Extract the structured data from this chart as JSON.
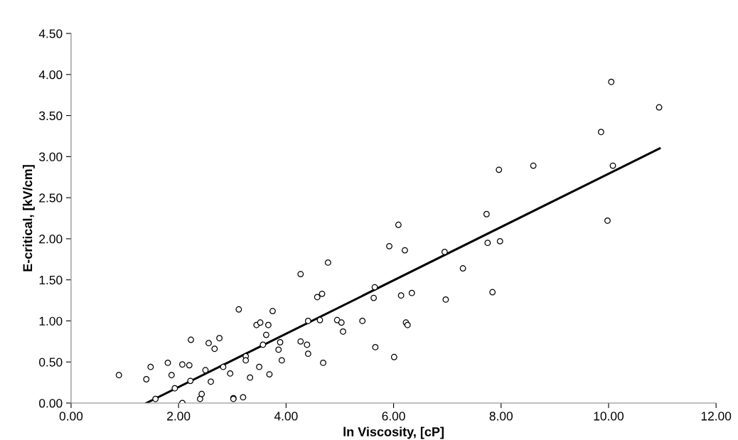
{
  "chart_data": {
    "type": "scatter",
    "xlabel": "ln Viscosity, [cP]",
    "ylabel": "E-critical, [kV/cm]",
    "xlim": [
      0,
      12
    ],
    "xticks": [
      {
        "value": 0,
        "label": "0.00"
      },
      {
        "value": 2,
        "label": "2.00"
      },
      {
        "value": 4,
        "label": "4.00"
      },
      {
        "value": 6,
        "label": "6.00"
      },
      {
        "value": 8,
        "label": "8.00"
      },
      {
        "value": 10,
        "label": "10.00"
      },
      {
        "value": 12,
        "label": "12.00"
      }
    ],
    "ylim": [
      0,
      4.5
    ],
    "yticks": [
      {
        "value": 0,
        "label": "0.00"
      },
      {
        "value": 0.5,
        "label": "0.50"
      },
      {
        "value": 1,
        "label": "1.00"
      },
      {
        "value": 1.5,
        "label": "1.50"
      },
      {
        "value": 2,
        "label": "2.00"
      },
      {
        "value": 2.5,
        "label": "2.50"
      },
      {
        "value": 3,
        "label": "3.00"
      },
      {
        "value": 3.5,
        "label": "3.50"
      },
      {
        "value": 4,
        "label": "4.00"
      },
      {
        "value": 4.5,
        "label": "4.50"
      }
    ],
    "grid": false,
    "legend": false,
    "marker": "circle",
    "series": [
      {
        "color": "#000000",
        "x": [
          0.89,
          1.4,
          1.48,
          1.57,
          1.8,
          1.87,
          1.93,
          2.07,
          2.07,
          2.2,
          2.22,
          2.23,
          2.4,
          2.43,
          2.5,
          2.56,
          2.6,
          2.67,
          2.76,
          2.83,
          2.96,
          3.02,
          3.02,
          3.12,
          3.2,
          3.25,
          3.25,
          3.33,
          3.45,
          3.5,
          3.52,
          3.57,
          3.63,
          3.67,
          3.69,
          3.75,
          3.86,
          3.89,
          3.92,
          4.27,
          4.27,
          4.39,
          4.41,
          4.41,
          4.58,
          4.63,
          4.67,
          4.69,
          4.78,
          4.95,
          5.03,
          5.06,
          5.42,
          5.63,
          5.65,
          5.66,
          5.92,
          6.01,
          6.09,
          6.14,
          6.21,
          6.23,
          6.26,
          6.34,
          6.95,
          6.97,
          7.29,
          7.73,
          7.75,
          7.84,
          7.96,
          7.98,
          8.6,
          9.86,
          9.98,
          10.05,
          10.08,
          10.94
        ],
        "values": [
          0.34,
          0.29,
          0.44,
          0.05,
          0.49,
          0.34,
          0.18,
          0.47,
          0.0,
          0.46,
          0.27,
          0.77,
          0.05,
          0.11,
          0.4,
          0.73,
          0.26,
          0.66,
          0.79,
          0.44,
          0.36,
          0.06,
          0.05,
          1.14,
          0.07,
          0.57,
          0.52,
          0.31,
          0.95,
          0.44,
          0.98,
          0.71,
          0.83,
          0.95,
          0.35,
          1.12,
          0.65,
          0.74,
          0.52,
          1.57,
          0.75,
          0.71,
          0.6,
          1.0,
          1.29,
          1.01,
          1.33,
          0.49,
          1.71,
          1.01,
          0.98,
          0.87,
          1.0,
          1.28,
          1.41,
          0.68,
          1.91,
          0.56,
          2.17,
          1.31,
          1.86,
          0.98,
          0.95,
          1.34,
          1.84,
          1.26,
          1.64,
          2.3,
          1.95,
          1.35,
          2.84,
          1.97,
          2.89,
          3.3,
          2.22,
          3.91,
          2.89,
          3.6
        ]
      },
      {
        "type": "line",
        "color": "#000000",
        "marker": "none",
        "x": [
          1.4,
          10.95
        ],
        "values": [
          0.0,
          3.1
        ]
      }
    ]
  }
}
